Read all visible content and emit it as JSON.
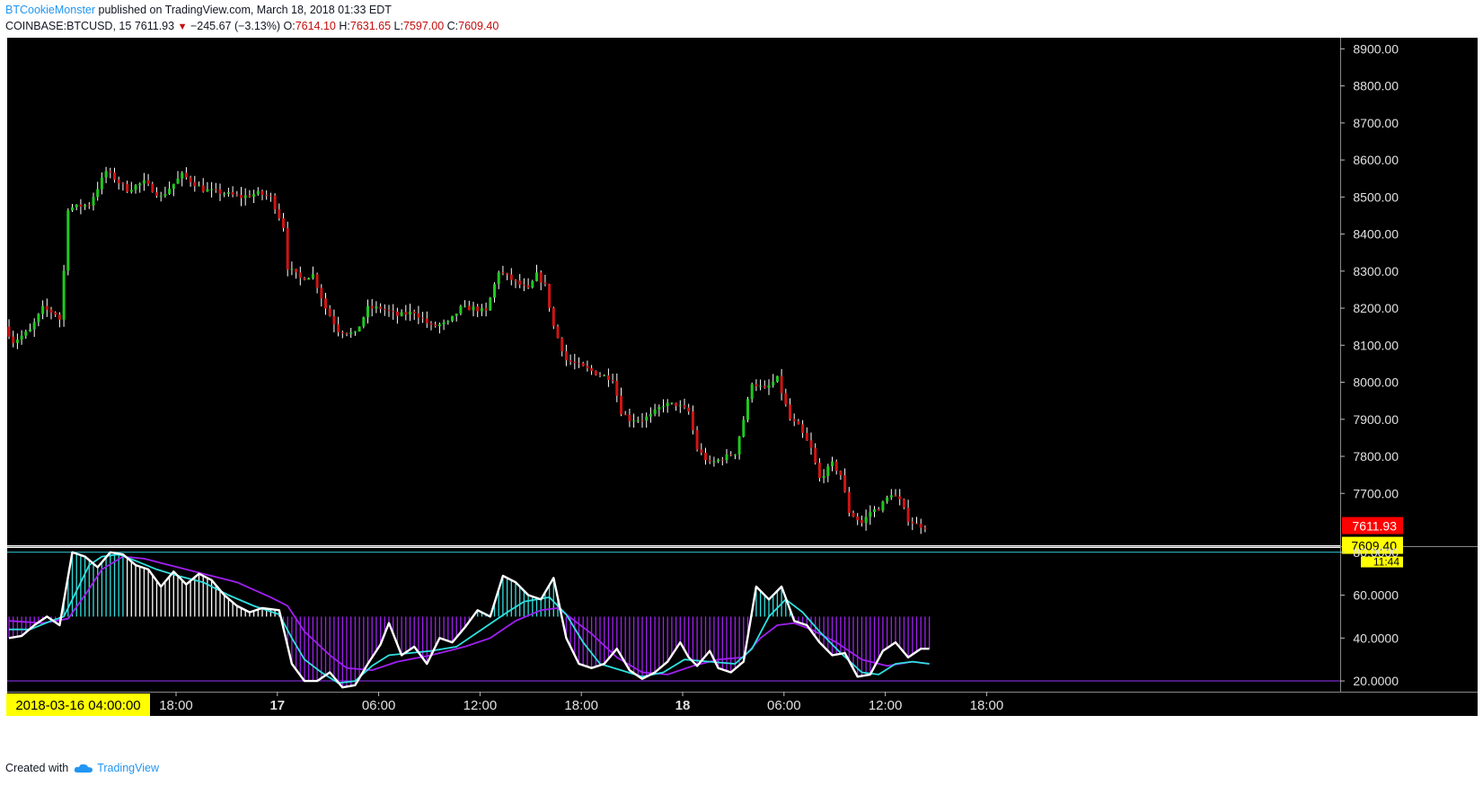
{
  "header": {
    "author": "BTCookieMonster",
    "published_text": "published on TradingView.com, March 18, 2018 01:33 EDT",
    "symbol": "COINBASE:BTCUSD, 15",
    "last": "7611.93",
    "change": "−245.67 (−3.13%)",
    "open_label": "O:",
    "open": "7614.10",
    "high_label": "H:",
    "high": "7631.65",
    "low_label": "L:",
    "low": "7597.00",
    "close_label": "C:",
    "close": "7609.40",
    "change_icon": "down-triangle-icon"
  },
  "footer": {
    "created_with": "Created with",
    "brand": "TradingView",
    "brand_icon": "cloud-logo-icon"
  },
  "colors": {
    "up": "#1ec91e",
    "down": "#d01414",
    "wick": "#ffffff",
    "background": "#000000",
    "stoch_k": "#ffffff",
    "stoch_d": "#2fe0e0",
    "signal": "#a020f0",
    "band": "#9933ff",
    "price_badge": "#ff0000",
    "close_badge": "#ffff00"
  },
  "chart_data": [
    {
      "type": "candlestick",
      "title": "",
      "ylim": [
        7560,
        8930
      ],
      "y_ticks": [
        "8900.00",
        "8800.00",
        "8700.00",
        "8600.00",
        "8500.00",
        "8400.00",
        "8300.00",
        "8200.00",
        "8100.00",
        "8000.00",
        "7900.00",
        "7800.00",
        "7700.00"
      ],
      "y_tick_values": [
        8900,
        8800,
        8700,
        8600,
        8500,
        8400,
        8300,
        8200,
        8100,
        8000,
        7900,
        7800,
        7700
      ],
      "x_ticks": [
        "18:00",
        "17",
        "06:00",
        "12:00",
        "18:00",
        "18",
        "06:00",
        "12:00",
        "18:00"
      ],
      "x_tick_bold": [
        false,
        true,
        false,
        false,
        false,
        true,
        false,
        false,
        false
      ],
      "x_tick_hours": [
        14,
        20,
        26,
        32,
        38,
        44,
        50,
        56,
        62
      ],
      "crosshair_date": "2018-03-16 04:00:00",
      "last_price_label": "7611.93",
      "close_label": "7609.40",
      "countdown_label": "11:44",
      "bar_interval_minutes": 15,
      "segments": [
        [
          0,
          8150
        ],
        [
          2,
          8110
        ],
        [
          6,
          8140
        ],
        [
          9,
          8200
        ],
        [
          12,
          8185
        ],
        [
          13,
          8170
        ],
        [
          14,
          8300
        ],
        [
          15,
          8470
        ],
        [
          20,
          8480
        ],
        [
          24,
          8570
        ],
        [
          29,
          8520
        ],
        [
          33,
          8540
        ],
        [
          37,
          8500
        ],
        [
          42,
          8560
        ],
        [
          47,
          8520
        ],
        [
          52,
          8510
        ],
        [
          56,
          8500
        ],
        [
          60,
          8510
        ],
        [
          63,
          8500
        ],
        [
          66,
          8420
        ],
        [
          67,
          8310
        ],
        [
          70,
          8280
        ],
        [
          73,
          8290
        ],
        [
          76,
          8200
        ],
        [
          79,
          8140
        ],
        [
          83,
          8130
        ],
        [
          86,
          8200
        ],
        [
          89,
          8200
        ],
        [
          93,
          8180
        ],
        [
          97,
          8190
        ],
        [
          101,
          8150
        ],
        [
          105,
          8160
        ],
        [
          108,
          8200
        ],
        [
          111,
          8200
        ],
        [
          114,
          8190
        ],
        [
          117,
          8300
        ],
        [
          121,
          8270
        ],
        [
          124,
          8250
        ],
        [
          126,
          8290
        ],
        [
          128,
          8260
        ],
        [
          130,
          8150
        ],
        [
          133,
          8060
        ],
        [
          137,
          8040
        ],
        [
          141,
          8020
        ],
        [
          144,
          8010
        ],
        [
          146,
          7920
        ],
        [
          148,
          7900
        ],
        [
          151,
          7900
        ],
        [
          153,
          7910
        ],
        [
          156,
          7940
        ],
        [
          159,
          7940
        ],
        [
          162,
          7920
        ],
        [
          164,
          7820
        ],
        [
          167,
          7780
        ],
        [
          171,
          7800
        ],
        [
          173,
          7810
        ],
        [
          175,
          7900
        ],
        [
          177,
          8000
        ],
        [
          180,
          7980
        ],
        [
          183,
          8010
        ],
        [
          186,
          7900
        ],
        [
          188,
          7880
        ],
        [
          191,
          7820
        ],
        [
          193,
          7740
        ],
        [
          196,
          7780
        ],
        [
          198,
          7750
        ],
        [
          200,
          7650
        ],
        [
          203,
          7620
        ],
        [
          205,
          7650
        ],
        [
          207,
          7660
        ],
        [
          210,
          7700
        ],
        [
          212,
          7680
        ],
        [
          214,
          7630
        ],
        [
          216,
          7615
        ],
        [
          218,
          7610
        ]
      ]
    },
    {
      "type": "line",
      "title": "",
      "ylim": [
        15,
        82
      ],
      "y_ticks": [
        "80.0000",
        "60.0000",
        "40.0000",
        "20.0000"
      ],
      "y_tick_values": [
        80,
        60,
        40,
        20
      ],
      "band_levels": [
        80,
        20
      ],
      "histogram_baseline": 50,
      "series": [
        {
          "key": "k",
          "points": [
            [
              0,
              40
            ],
            [
              3,
              41
            ],
            [
              6,
              46
            ],
            [
              9,
              50
            ],
            [
              12,
              46
            ],
            [
              15,
              80
            ],
            [
              18,
              78
            ],
            [
              21,
              73
            ],
            [
              24,
              80
            ],
            [
              27,
              79
            ],
            [
              30,
              74
            ],
            [
              33,
              72
            ],
            [
              36,
              64
            ],
            [
              39,
              71
            ],
            [
              42,
              65
            ],
            [
              45,
              70
            ],
            [
              48,
              67
            ],
            [
              51,
              60
            ],
            [
              54,
              55
            ],
            [
              57,
              52
            ],
            [
              60,
              54
            ],
            [
              64,
              53
            ],
            [
              67,
              28
            ],
            [
              70,
              20
            ],
            [
              73,
              20
            ],
            [
              76,
              24
            ],
            [
              79,
              17
            ],
            [
              82,
              18
            ],
            [
              85,
              28
            ],
            [
              88,
              37
            ],
            [
              90,
              47
            ],
            [
              93,
              32
            ],
            [
              96,
              36
            ],
            [
              99,
              28
            ],
            [
              102,
              40
            ],
            [
              105,
              38
            ],
            [
              108,
              45
            ],
            [
              111,
              53
            ],
            [
              114,
              50
            ],
            [
              117,
              69
            ],
            [
              120,
              66
            ],
            [
              123,
              60
            ],
            [
              126,
              58
            ],
            [
              129,
              68
            ],
            [
              132,
              40
            ],
            [
              135,
              28
            ],
            [
              138,
              26
            ],
            [
              141,
              28
            ],
            [
              144,
              35
            ],
            [
              147,
              25
            ],
            [
              150,
              21
            ],
            [
              153,
              24
            ],
            [
              156,
              29
            ],
            [
              159,
              38
            ],
            [
              161,
              31
            ],
            [
              163,
              27
            ],
            [
              166,
              34
            ],
            [
              168,
              26
            ],
            [
              171,
              24
            ],
            [
              174,
              29
            ],
            [
              177,
              64
            ],
            [
              180,
              58
            ],
            [
              183,
              64
            ],
            [
              186,
              48
            ],
            [
              189,
              46
            ],
            [
              192,
              38
            ],
            [
              195,
              32
            ],
            [
              198,
              33
            ],
            [
              201,
              22
            ],
            [
              204,
              23
            ],
            [
              207,
              34
            ],
            [
              210,
              38
            ],
            [
              213,
              31
            ],
            [
              216,
              35
            ],
            [
              218,
              35
            ]
          ]
        },
        {
          "key": "d",
          "points": [
            [
              0,
              44
            ],
            [
              5,
              44
            ],
            [
              10,
              48
            ],
            [
              13,
              50
            ],
            [
              16,
              62
            ],
            [
              19,
              74
            ],
            [
              22,
              78
            ],
            [
              26,
              79
            ],
            [
              30,
              76
            ],
            [
              35,
              72
            ],
            [
              40,
              69
            ],
            [
              46,
              66
            ],
            [
              52,
              60
            ],
            [
              58,
              55
            ],
            [
              64,
              51
            ],
            [
              67,
              40
            ],
            [
              70,
              30
            ],
            [
              74,
              24
            ],
            [
              78,
              19
            ],
            [
              82,
              20
            ],
            [
              86,
              27
            ],
            [
              90,
              32
            ],
            [
              95,
              33
            ],
            [
              100,
              34
            ],
            [
              106,
              36
            ],
            [
              112,
              44
            ],
            [
              118,
              52
            ],
            [
              122,
              57
            ],
            [
              128,
              59
            ],
            [
              132,
              51
            ],
            [
              136,
              38
            ],
            [
              140,
              28
            ],
            [
              145,
              25
            ],
            [
              150,
              22
            ],
            [
              155,
              24
            ],
            [
              160,
              30
            ],
            [
              166,
              29
            ],
            [
              172,
              28
            ],
            [
              176,
              35
            ],
            [
              180,
              50
            ],
            [
              184,
              58
            ],
            [
              188,
              52
            ],
            [
              192,
              43
            ],
            [
              197,
              33
            ],
            [
              202,
              24
            ],
            [
              206,
              23
            ],
            [
              210,
              28
            ],
            [
              214,
              29
            ],
            [
              218,
              28
            ]
          ]
        },
        {
          "key": "signal",
          "points": [
            [
              0,
              48
            ],
            [
              8,
              47
            ],
            [
              14,
              49
            ],
            [
              18,
              60
            ],
            [
              22,
              72
            ],
            [
              27,
              78
            ],
            [
              32,
              77
            ],
            [
              38,
              74
            ],
            [
              46,
              70
            ],
            [
              54,
              66
            ],
            [
              62,
              59
            ],
            [
              66,
              55
            ],
            [
              70,
              43
            ],
            [
              76,
              32
            ],
            [
              80,
              26
            ],
            [
              86,
              25
            ],
            [
              92,
              29
            ],
            [
              100,
              32
            ],
            [
              108,
              36
            ],
            [
              114,
              40
            ],
            [
              120,
              48
            ],
            [
              126,
              53
            ],
            [
              130,
              54
            ],
            [
              134,
              48
            ],
            [
              138,
              42
            ],
            [
              144,
              31
            ],
            [
              150,
              24
            ],
            [
              156,
              23
            ],
            [
              162,
              27
            ],
            [
              168,
              30
            ],
            [
              174,
              31
            ],
            [
              178,
              40
            ],
            [
              182,
              46
            ],
            [
              186,
              47
            ],
            [
              190,
              44
            ],
            [
              196,
              38
            ],
            [
              202,
              30
            ],
            [
              208,
              27
            ],
            [
              214,
              29
            ],
            [
              218,
              28
            ]
          ]
        }
      ]
    }
  ]
}
